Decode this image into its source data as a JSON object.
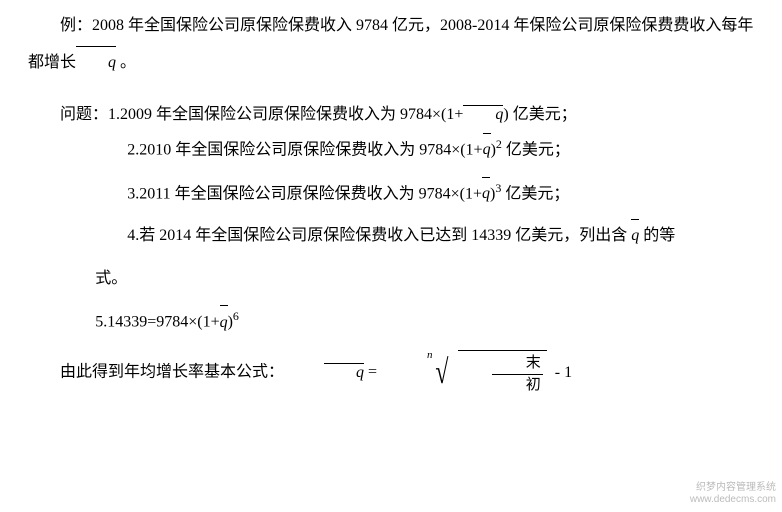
{
  "intro": {
    "prefix": "例：2008 年全国保险公司原保险保费收入 9784 亿元，2008-2014 年保险公司原保险保费费收入每年都增长",
    "suffix": " 。"
  },
  "question_label": "问题：",
  "items": {
    "i1a": "1.2009 年全国保险公司原保险保费收入为 9784×(1+",
    "i1b": ") 亿美元；",
    "i2a": "2.2010 年全国保险公司原保险保费收入为 9784×(1+",
    "i2b": ")",
    "i2c": " 亿美元；",
    "exp2": "2",
    "i3a": "3.2011 年全国保险公司原保险保费收入为 9784×(1+",
    "i3b": ")",
    "i3c": " 亿美元；",
    "exp3": "3",
    "i4a": "4.若 2014 年全国保险公司原保险保费收入已达到 14339 亿美元，列出含 ",
    "i4b": " 的等",
    "i4sub": "式。",
    "i5a": "5.14339=9784×(1+",
    "i5b": ")",
    "exp6": "6"
  },
  "conclusion": {
    "text": "由此得到年均增长率基本公式：",
    "eq_lhs_letter": "q",
    "eq_sign": " = ",
    "root_n": "n",
    "frac_top": "末",
    "frac_bot": "初",
    "minus1": " - 1"
  },
  "q_letter": "q",
  "watermark": {
    "l1": "织梦内容管理系统",
    "l2": "www.dedecms.com"
  }
}
